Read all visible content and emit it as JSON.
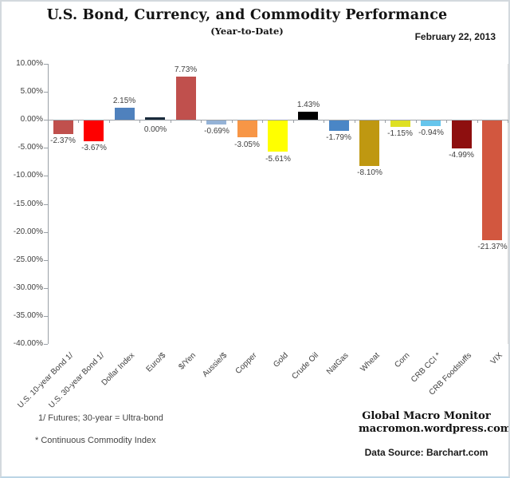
{
  "header": {
    "title": "U.S. Bond, Currency, and Commodity Performance",
    "subtitle": "(Year-to-Date)",
    "date": "February 22, 2013"
  },
  "chart_data": {
    "type": "bar",
    "categories": [
      "U.S. 10-year Bond 1/",
      "U.S. 30-year Bond 1/",
      "Dollar Index",
      "Euro/$",
      "$/Yen",
      "Aussie/$",
      "Copper",
      "Gold",
      "Crude Oil",
      "NatGas",
      "Wheat",
      "Corn",
      "CRB CCI *",
      "CRB Foodstuffs",
      "VIX"
    ],
    "values": [
      -2.37,
      -3.67,
      2.15,
      0.0,
      7.73,
      -0.69,
      -3.05,
      -5.61,
      1.43,
      -1.79,
      -8.1,
      -1.15,
      -0.94,
      -4.99,
      -21.37
    ],
    "value_labels": [
      "-2.37%",
      "-3.67%",
      "2.15%",
      "0.00%",
      "7.73%",
      "-0.69%",
      "-3.05%",
      "-5.61%",
      "1.43%",
      "-1.79%",
      "-8.10%",
      "-1.15%",
      "-0.94%",
      "-4.99%",
      "-21.37%"
    ],
    "colors": [
      "#C0504D",
      "#FE0000",
      "#4F81BD",
      "#1A2B3C",
      "#C0504D",
      "#95B3D7",
      "#F79646",
      "#FFFF00",
      "#000000",
      "#4A86C6",
      "#BF9811",
      "#DEE023",
      "#66C5EC",
      "#8E0F0F",
      "#D2573F"
    ],
    "title": "U.S. Bond, Currency, and Commodity Performance (Year-to-Date)",
    "xlabel": "",
    "ylabel": "",
    "ylim": [
      -40,
      10
    ],
    "ytick_step": 5,
    "yticks": [
      10,
      5,
      0,
      -5,
      -10,
      -15,
      -20,
      -25,
      -30,
      -35,
      -40
    ],
    "ytick_labels": [
      "10.00%",
      "5.00%",
      "0.00%",
      "-5.00%",
      "-10.00%",
      "-15.00%",
      "-20.00%",
      "-25.00%",
      "-30.00%",
      "-35.00%",
      "-40.00%"
    ],
    "grid": false,
    "legend": "none"
  },
  "footnotes": {
    "note1": "1/  Futures; 30-year = Ultra-bond",
    "note2": "* Continuous Commodity Index"
  },
  "source": {
    "name": "Global Macro Monitor",
    "url": "macromon.wordpress.com",
    "data_source": "Data Source:  Barchart.com"
  }
}
